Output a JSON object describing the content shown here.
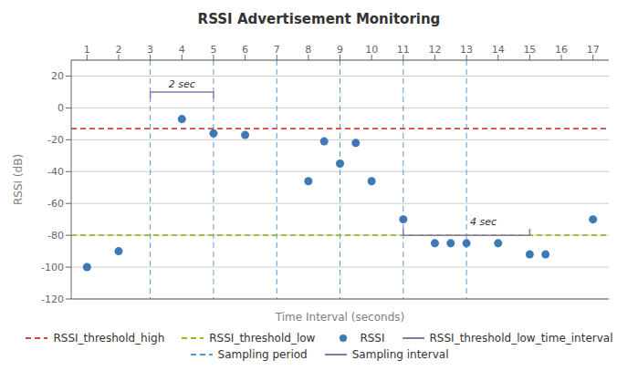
{
  "chart_data": {
    "type": "scatter",
    "title": "RSSI Advertisement Monitoring",
    "x_label": "Time Interval (seconds)",
    "y_label": "RSSI (dB)",
    "xlim": [
      0.5,
      17.5
    ],
    "ylim": [
      -120,
      30
    ],
    "xticks": [
      1,
      2,
      3,
      4,
      5,
      6,
      7,
      8,
      9,
      10,
      11,
      12,
      13,
      14,
      15,
      16,
      17
    ],
    "yticks": [
      -120,
      -100,
      -80,
      -60,
      -40,
      -20,
      0,
      20
    ],
    "grid": true,
    "legend": "bottom",
    "reference_lines": [
      {
        "name": "RSSI_threshold_high",
        "axis": "y",
        "value": -13,
        "color": "#d94040",
        "line_style": "dashed"
      },
      {
        "name": "RSSI_threshold_low",
        "axis": "y",
        "value": -80,
        "color": "#9ab520",
        "line_style": "dashed"
      }
    ],
    "series": [
      {
        "name": "RSSI",
        "type": "scatter",
        "color": "#3d7ab5",
        "marker": "circle",
        "x": [
          1,
          2,
          4,
          5,
          6,
          8,
          8.5,
          9,
          9.5,
          10,
          11,
          12,
          12.5,
          13,
          14,
          15,
          15.5,
          17
        ],
        "values": [
          -100,
          -90,
          -7,
          -16,
          -17,
          -46,
          -21,
          -35,
          -22,
          -46,
          -70,
          -85,
          -85,
          -85,
          -85,
          -92,
          -92,
          -70
        ]
      }
    ],
    "legend_only": [
      {
        "name": "RSSI_threshold_low_time_interval",
        "color": "#8877aa",
        "line_style": "solid"
      }
    ],
    "sampling_period": {
      "name": "Sampling period",
      "color": "#5599cc",
      "line_style": "dashed",
      "x": [
        3,
        5,
        7,
        9,
        11,
        13
      ]
    },
    "sampling_interval": {
      "name": "Sampling interval",
      "color": "#8877aa",
      "line_style": "solid",
      "brackets": [
        {
          "x": [
            3,
            5
          ],
          "y": 10,
          "label": "2 sec",
          "tick_side": "below"
        },
        {
          "x": [
            11,
            15
          ],
          "y": -80,
          "label": "4 sec",
          "tick_side": "above"
        }
      ]
    }
  }
}
